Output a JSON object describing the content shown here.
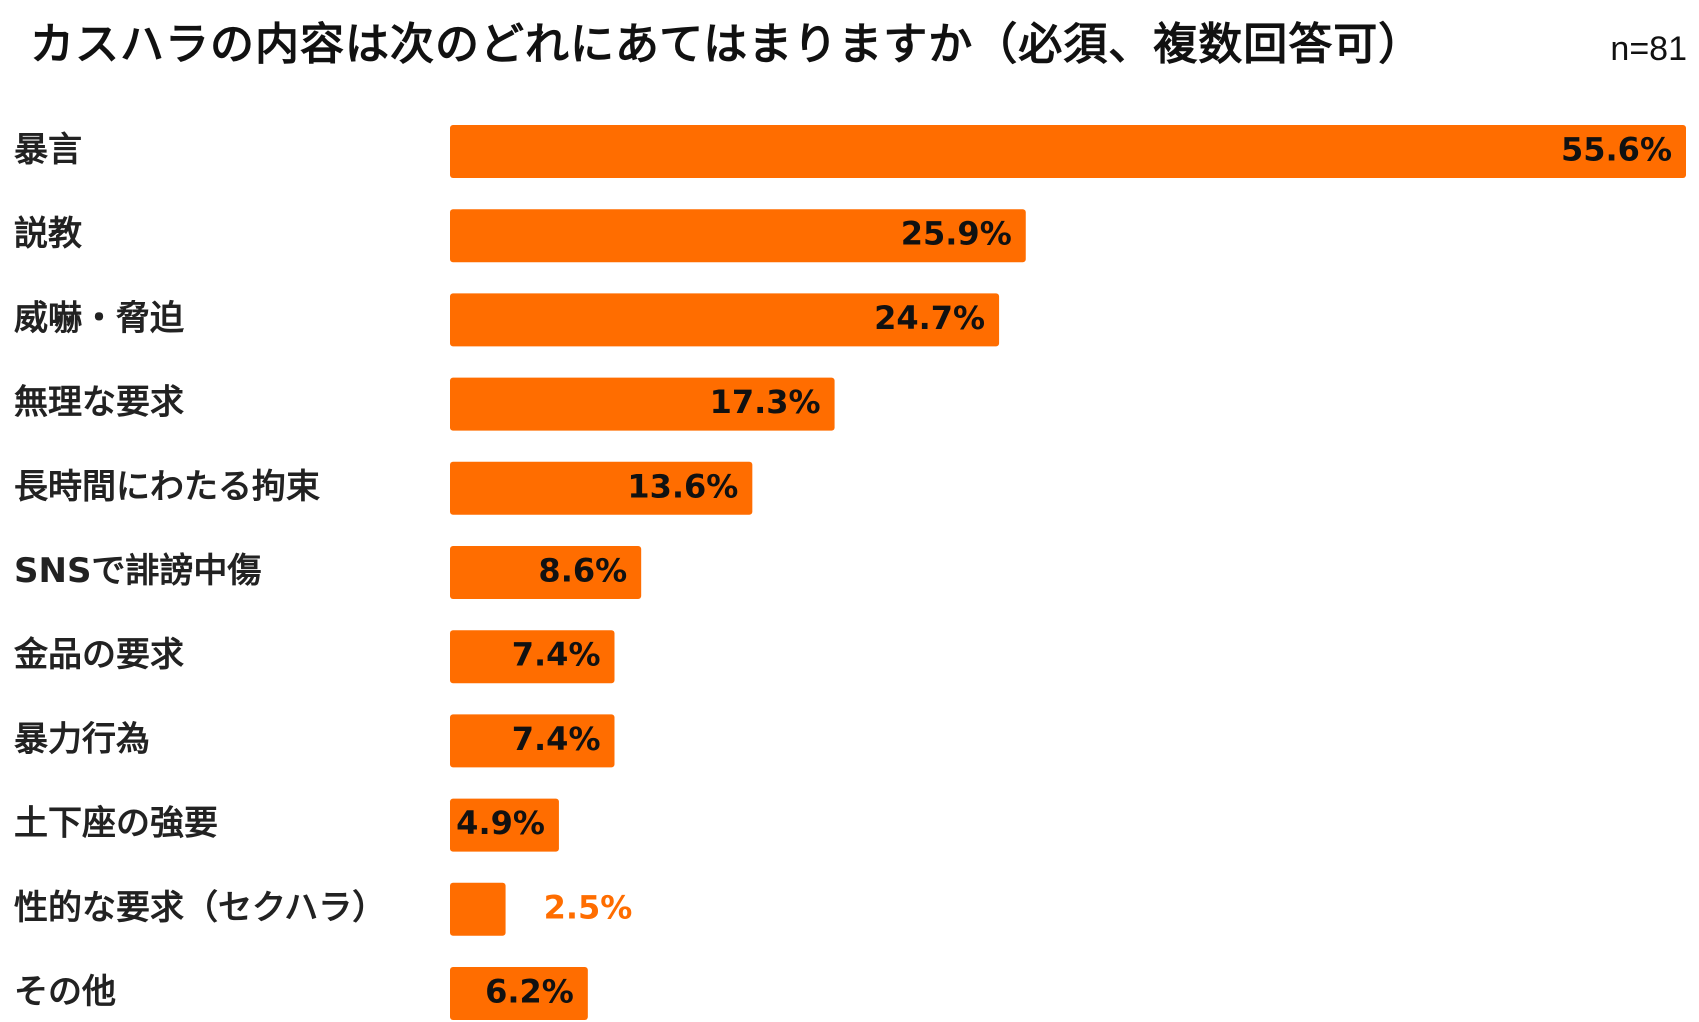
{
  "header": {
    "title": "カスハラの内容は次のどれにあてはまりますか（必須、複数回答可）",
    "sample": "n=81"
  },
  "colors": {
    "bar": "#FF6D00",
    "label_inside": "#111111",
    "label_outside": "#FF6D00"
  },
  "chart_data": {
    "type": "bar",
    "orientation": "horizontal",
    "title": "カスハラの内容は次のどれにあてはまりますか（必須、複数回答可）",
    "sample_size": "n=81",
    "unit": "%",
    "categories": [
      "暴言",
      "説教",
      "威嚇・脅迫",
      "無理な要求",
      "長時間にわたる拘束",
      "SNSで誹謗中傷",
      "金品の要求",
      "暴力行為",
      "土下座の強要",
      "性的な要求（セクハラ）",
      "その他"
    ],
    "values": [
      55.6,
      25.9,
      24.7,
      17.3,
      13.6,
      8.6,
      7.4,
      7.4,
      4.9,
      2.5,
      6.2
    ],
    "value_labels": [
      "55.6%",
      "25.9%",
      "24.7%",
      "17.3%",
      "13.6%",
      "8.6%",
      "7.4%",
      "7.4%",
      "4.9%",
      "2.5%",
      "6.2%"
    ],
    "xlim": [
      0,
      55.6
    ],
    "grid": false,
    "legend": "none"
  }
}
